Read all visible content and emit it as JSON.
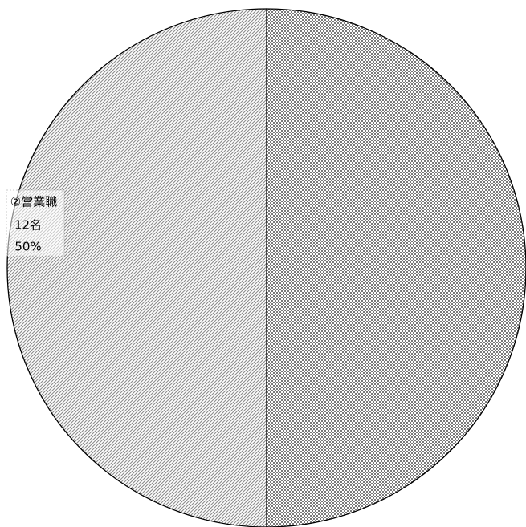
{
  "chart_data": {
    "type": "pie",
    "categories": [
      null,
      "②営業職"
    ],
    "values": [
      50,
      50
    ],
    "value_labels": [
      null,
      "50%"
    ],
    "count_labels": [
      null,
      "12名"
    ],
    "colors": [
      "#7a7a7a",
      "#8c8c8c"
    ],
    "patterns": [
      "crosshatch",
      "diagonal"
    ]
  }
}
